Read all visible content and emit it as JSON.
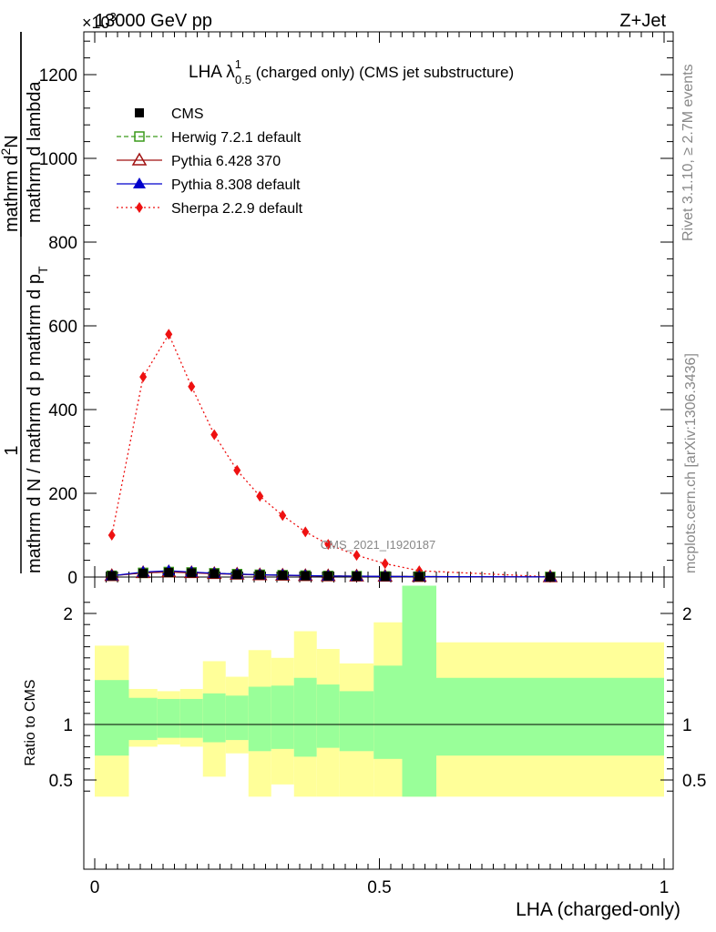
{
  "header": {
    "left": "13000 GeV pp",
    "right": "Z+Jet",
    "exponent": "×10",
    "exponent_power": "3"
  },
  "side_text": {
    "rivet": "Rivet 3.1.10, ≥ 2.7M events",
    "mcplots": "mcplots.cern.ch [arXiv:1306.3436]"
  },
  "watermark": "CMS_2021_I1920187",
  "main_title": {
    "prefix": "LHA λ",
    "sup": "1",
    "sub": "0.5",
    "suffix": " (charged only) (CMS jet substructure)"
  },
  "y_label": {
    "numerator": "1",
    "denominator_line1": "mathrm d N / mathrm d p mathrm d p",
    "denominator_sub": "T",
    "numerator2_line1": "mathrm d",
    "numerator2_sup": "2",
    "numerator2_rest": "N",
    "denom2": " mathrm d lambda"
  },
  "ratio_ylabel": "Ratio to CMS",
  "x_axis_label": "LHA (charged-only)",
  "legend": [
    {
      "label": "CMS",
      "color": "#000000",
      "marker": "square-filled",
      "line": "none"
    },
    {
      "label": "Herwig 7.2.1 default",
      "color": "#3a9a1a",
      "marker": "square-open",
      "line": "dashed"
    },
    {
      "label": "Pythia 6.428 370",
      "color": "#a01010",
      "marker": "triangle-open",
      "line": "solid"
    },
    {
      "label": "Pythia 8.308 default",
      "color": "#0000cc",
      "marker": "triangle-filled",
      "line": "solid"
    },
    {
      "label": "Sherpa 2.2.9 default",
      "color": "#ee1111",
      "marker": "diamond-filled",
      "line": "dotted"
    }
  ],
  "chart_data": {
    "type": "line",
    "xlim": [
      0,
      1
    ],
    "ylim_main": [
      0,
      1300
    ],
    "ylim_ratio": [
      0.35,
      2.25
    ],
    "y_scale_note": "main panel values in units of 10^3",
    "x_ticks": [
      0,
      0.5,
      1
    ],
    "x_tick_labels": [
      "0",
      "0.5",
      "1"
    ],
    "y_ticks_main": [
      0,
      200,
      400,
      600,
      800,
      1000,
      1200
    ],
    "y_tick_labels_main": [
      "0",
      "200",
      "400",
      "600",
      "800",
      "1000",
      "1200"
    ],
    "y_ticks_ratio": [
      0.5,
      1,
      2
    ],
    "y_tick_labels_ratio": [
      "0.5",
      "1",
      "2"
    ],
    "x": [
      0.03,
      0.085,
      0.13,
      0.17,
      0.21,
      0.25,
      0.29,
      0.33,
      0.37,
      0.41,
      0.46,
      0.51,
      0.57,
      0.8
    ],
    "series": [
      {
        "name": "CMS",
        "values": [
          3,
          9,
          11,
          10,
          8,
          6,
          5,
          4,
          3,
          2.5,
          2,
          1.5,
          1,
          0.3
        ]
      },
      {
        "name": "Herwig 7.2.1 default",
        "values": [
          3,
          10,
          12,
          11,
          9,
          7,
          5.5,
          4.5,
          3.5,
          2.5,
          2,
          1.5,
          1,
          0.3
        ]
      },
      {
        "name": "Pythia 6.428 370",
        "values": [
          3,
          10,
          12,
          10,
          8,
          6.5,
          5,
          4,
          3,
          2.5,
          2,
          1.5,
          1,
          0.3
        ]
      },
      {
        "name": "Pythia 8.308 default",
        "values": [
          3,
          12,
          15,
          12,
          9,
          7,
          5.5,
          4.5,
          3.5,
          2.5,
          2,
          1.5,
          1,
          0.3
        ]
      },
      {
        "name": "Sherpa 2.2.9 default",
        "values": [
          100,
          478,
          580,
          455,
          340,
          255,
          193,
          147,
          108,
          78,
          52,
          32,
          15,
          0.5
        ]
      }
    ],
    "ratio_bands": {
      "bin_edges": [
        0,
        0.06,
        0.11,
        0.15,
        0.19,
        0.23,
        0.27,
        0.31,
        0.35,
        0.39,
        0.43,
        0.49,
        0.54,
        0.6,
        1.0
      ],
      "green_low": [
        0.72,
        0.86,
        0.88,
        0.88,
        0.84,
        0.86,
        0.76,
        0.78,
        0.71,
        0.79,
        0.76,
        0.69,
        0.35,
        0.72
      ],
      "green_high": [
        1.4,
        1.24,
        1.23,
        1.23,
        1.28,
        1.26,
        1.34,
        1.35,
        1.42,
        1.36,
        1.3,
        1.53,
        2.25,
        1.42
      ],
      "yellow_low": [
        0.35,
        0.8,
        0.82,
        0.8,
        0.53,
        0.74,
        0.35,
        0.46,
        0.35,
        0.35,
        0.35,
        0.35,
        0.35,
        0.35
      ],
      "yellow_high": [
        1.71,
        1.32,
        1.3,
        1.32,
        1.57,
        1.43,
        1.67,
        1.6,
        1.84,
        1.68,
        1.55,
        1.92,
        2.25,
        1.74
      ]
    }
  }
}
